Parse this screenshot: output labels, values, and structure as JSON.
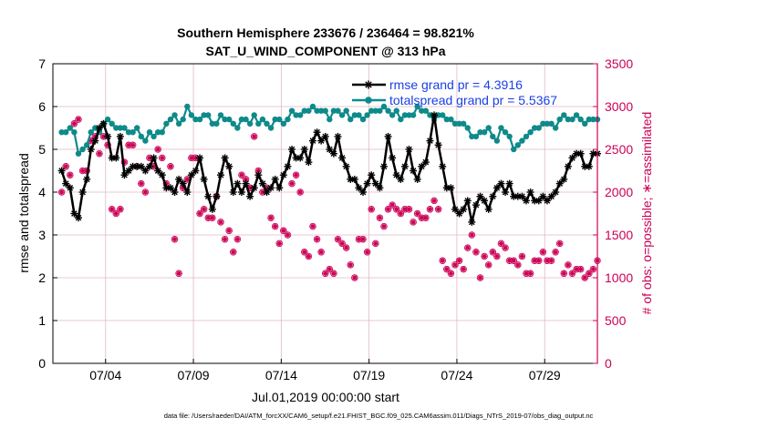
{
  "chart_data": {
    "type": "line",
    "title_line1": "Southern Hemisphere 233676 / 236464 = 98.821%",
    "title_line2": "SAT_U_WIND_COMPONENT @ 313 hPa",
    "xlabel": "Jul.01,2019 00:00:00 start",
    "ylabel_left": "rmse and totalspread",
    "ylabel_right": "# of obs: o=possible; ∗=assimilated",
    "xlim": [
      1,
      32
    ],
    "ylim_left": [
      0,
      7
    ],
    "ylim_right": [
      0,
      3500
    ],
    "x_tick_values": [
      4,
      9,
      14,
      19,
      24,
      29
    ],
    "x_tick_labels": [
      "07/04",
      "07/09",
      "07/14",
      "07/19",
      "07/24",
      "07/29"
    ],
    "y_left_ticks": [
      "0",
      "1",
      "2",
      "3",
      "4",
      "5",
      "6",
      "7"
    ],
    "y_right_ticks": [
      "0",
      "500",
      "1000",
      "1500",
      "2000",
      "2500",
      "3000",
      "3500"
    ],
    "legend": {
      "rmse": "rmse grand pr = 4.3916",
      "spread": "totalspread grand pr = 5.5367"
    },
    "colors": {
      "rmse": "#000000",
      "spread": "#0f8a8a",
      "obs": "#cc0055",
      "legend_text": "#1a3fe6",
      "grid": "#e0b7c8"
    },
    "series": [
      {
        "name": "rmse",
        "axis": "left",
        "values": [
          4.5,
          4.2,
          4.1,
          3.5,
          3.4,
          4.0,
          4.3,
          5.0,
          5.2,
          5.5,
          5.6,
          5.3,
          4.8,
          4.8,
          5.3,
          4.4,
          4.5,
          4.6,
          4.6,
          4.6,
          4.5,
          4.6,
          4.8,
          4.5,
          4.4,
          4.1,
          4.1,
          4.0,
          4.3,
          4.2,
          4.0,
          4.4,
          4.5,
          4.8,
          4.3,
          3.9,
          3.6,
          3.9,
          4.4,
          4.8,
          4.6,
          4.0,
          4.2,
          4.0,
          4.2,
          3.9,
          4.1,
          4.4,
          4.2,
          4.0,
          4.1,
          4.3,
          4.1,
          4.4,
          4.6,
          5.0,
          4.8,
          4.8,
          5.0,
          4.7,
          5.2,
          5.4,
          5.2,
          5.3,
          5.0,
          4.9,
          5.3,
          4.8,
          4.6,
          4.3,
          4.3,
          4.1,
          4.0,
          4.2,
          4.4,
          4.2,
          4.1,
          4.6,
          5.3,
          4.8,
          4.4,
          4.3,
          4.6,
          5.0,
          4.5,
          4.3,
          4.6,
          4.7,
          5.2,
          5.8,
          5.1,
          4.6,
          4.1,
          4.1,
          3.6,
          3.5,
          3.6,
          3.8,
          3.3,
          3.7,
          3.9,
          3.8,
          3.6,
          3.9,
          4.1,
          4.2,
          4.0,
          4.2,
          3.9,
          3.9,
          3.9,
          3.8,
          4.0,
          3.8,
          3.8,
          3.9,
          3.8,
          3.9,
          4.0,
          4.2,
          4.3,
          4.6,
          4.8,
          4.9,
          4.9,
          4.6,
          4.6,
          4.9,
          4.9
        ]
      },
      {
        "name": "totalspread",
        "axis": "left",
        "values": [
          5.4,
          5.4,
          5.5,
          5.4,
          4.9,
          5.0,
          5.1,
          5.4,
          5.5,
          5.4,
          5.6,
          5.7,
          5.6,
          5.5,
          5.5,
          5.5,
          5.4,
          5.4,
          5.5,
          5.3,
          5.2,
          5.4,
          5.3,
          5.4,
          5.4,
          5.6,
          5.7,
          5.8,
          5.6,
          5.7,
          6.0,
          5.8,
          5.7,
          5.7,
          5.8,
          5.8,
          5.6,
          5.6,
          5.8,
          5.7,
          5.7,
          5.6,
          5.5,
          5.7,
          5.7,
          5.6,
          5.8,
          5.6,
          5.7,
          5.6,
          5.5,
          5.7,
          5.7,
          5.6,
          5.7,
          5.9,
          5.8,
          5.8,
          5.9,
          5.9,
          6.0,
          5.9,
          5.9,
          5.9,
          5.7,
          5.9,
          5.9,
          5.8,
          5.9,
          5.7,
          5.8,
          5.8,
          5.7,
          5.8,
          5.9,
          5.9,
          5.9,
          6.0,
          5.9,
          5.8,
          5.9,
          5.7,
          5.8,
          5.8,
          5.8,
          6.0,
          5.9,
          5.9,
          5.8,
          5.7,
          5.8,
          5.8,
          5.7,
          5.7,
          5.6,
          5.6,
          5.6,
          5.5,
          5.3,
          5.3,
          5.4,
          5.4,
          5.5,
          5.3,
          5.2,
          5.5,
          5.4,
          5.3,
          5.0,
          5.1,
          5.2,
          5.3,
          5.4,
          5.5,
          5.5,
          5.6,
          5.6,
          5.6,
          5.5,
          5.7,
          5.8,
          5.7,
          5.7,
          5.8,
          5.7,
          5.6,
          5.7,
          5.7,
          5.7
        ]
      },
      {
        "name": "obs_possible",
        "axis": "right",
        "values": [
          2000,
          2300,
          2200,
          2800,
          2850,
          2250,
          2250,
          2600,
          2650,
          2450,
          2650,
          2550,
          1800,
          1750,
          1800,
          2350,
          2550,
          2550,
          2300,
          2100,
          2000,
          2400,
          2300,
          2500,
          2400,
          2100,
          2300,
          1450,
          1050,
          2050,
          2150,
          2400,
          2400,
          1750,
          1800,
          1700,
          1700,
          1950,
          1650,
          1450,
          1550,
          1300,
          1450,
          2200,
          2150,
          2050,
          2650,
          2250,
          2000,
          2050,
          1700,
          1600,
          1400,
          1550,
          1500,
          2100,
          2200,
          2000,
          1300,
          1250,
          1600,
          1450,
          1300,
          1050,
          1100,
          1050,
          1450,
          1400,
          1350,
          1150,
          1000,
          1450,
          1450,
          1300,
          1800,
          1400,
          1700,
          1600,
          1800,
          1850,
          1800,
          1750,
          1800,
          1800,
          1650,
          1750,
          1700,
          1700,
          1800,
          1900,
          1800,
          1200,
          1100,
          1050,
          1150,
          1200,
          1100,
          1350,
          1500,
          1300,
          1000,
          1250,
          1150,
          1300,
          1250,
          1400,
          1350,
          1200,
          1200,
          1150,
          1250,
          1050,
          1050,
          1200,
          1200,
          1300,
          1200,
          1200,
          1300,
          1400,
          1050,
          1150,
          1050,
          1100,
          1100,
          1000,
          1050,
          1100,
          1200
        ],
        "marker": "o"
      }
    ]
  },
  "footer": "data file: /Users/raeder/DAI/ATM_forcXX/CAM6_setup/f.e21.FHIST_BGC.f09_025.CAM6assim.011/Diags_NTrS_2019-07/obs_diag_output.nc"
}
